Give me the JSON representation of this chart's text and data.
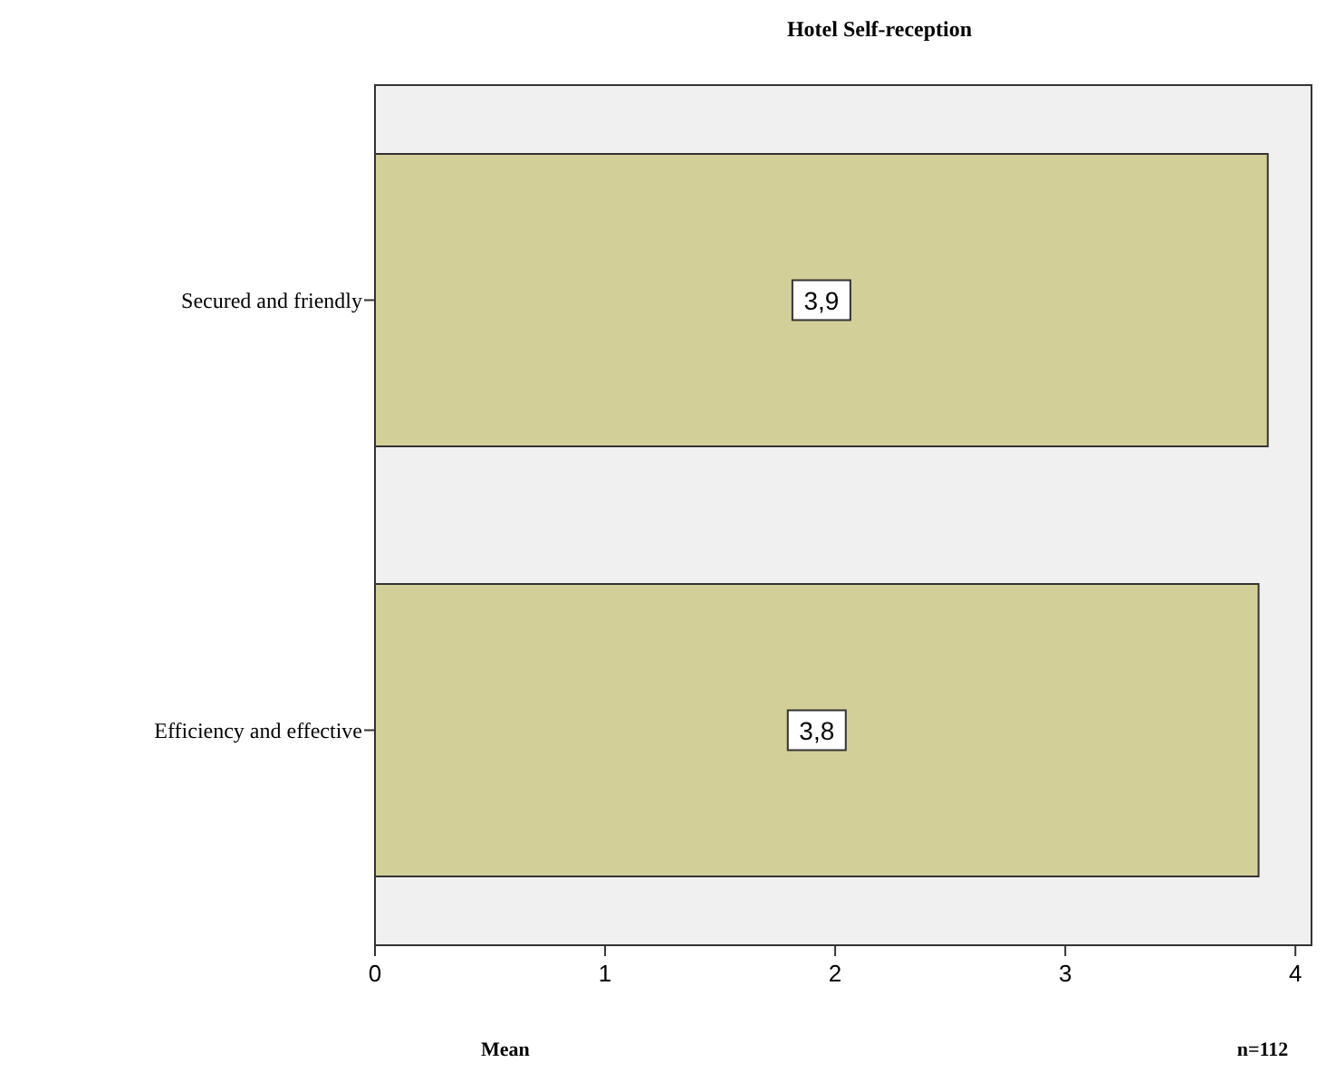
{
  "chart_data": {
    "type": "bar",
    "orientation": "horizontal",
    "title": "Hotel Self-reception",
    "xlabel": "Mean",
    "annotations": [
      "n=112"
    ],
    "categories": [
      "Secured and friendly",
      "Efficiency and effective"
    ],
    "values": [
      3.88,
      3.84
    ],
    "value_labels": [
      "3,9",
      "3,8"
    ],
    "color": "#d3cf98",
    "xlim": [
      0,
      4.07
    ],
    "xticks": [
      0,
      1,
      2,
      3,
      4
    ],
    "grid": false
  }
}
